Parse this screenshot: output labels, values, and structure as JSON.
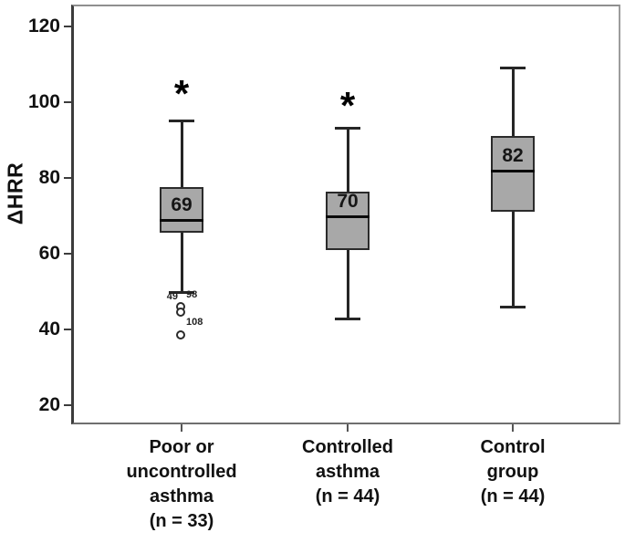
{
  "chart_data": {
    "type": "box",
    "title": "",
    "ylabel": "ΔHRR",
    "xlabel": "",
    "yticks": [
      120,
      100,
      80,
      60,
      40,
      20
    ],
    "ylim": [
      15,
      126
    ],
    "grid": false,
    "frame": true,
    "colors": {
      "box_fill": "#a8a8a8",
      "box_border": "#2b2b2b",
      "median_line": "#0a0a0a",
      "whisker": "#262626",
      "text": "#111111"
    },
    "groups": [
      {
        "label_lines": [
          "Poor or",
          "uncontrolled",
          "asthma",
          "(n = 33)"
        ],
        "n": 33,
        "whisker_high": 95,
        "q3": 77.5,
        "median": 69,
        "q1": 65.5,
        "whisker_low": 50,
        "median_label": "69",
        "significance_marker": "*",
        "significance_y": 103.5,
        "outliers": [
          {
            "value": 46,
            "case_label": "49",
            "label_side": "left",
            "label_at": 48.7
          },
          {
            "value": 44.5,
            "case_label": "98",
            "label_side": "right",
            "label_at": 49.2
          },
          {
            "value": 38.5,
            "case_label": "108",
            "label_side": "right",
            "label_at": 42
          }
        ]
      },
      {
        "label_lines": [
          "Controlled",
          "asthma",
          "(n = 44)"
        ],
        "n": 44,
        "whisker_high": 93,
        "q3": 76.5,
        "median": 70,
        "q1": 61,
        "whisker_low": 43,
        "median_label": "70",
        "significance_marker": "*",
        "significance_y": 100.5,
        "outliers": []
      },
      {
        "label_lines": [
          "Control",
          "group",
          "(n = 44)"
        ],
        "n": 44,
        "whisker_high": 109,
        "q3": 91,
        "median": 82,
        "q1": 71,
        "whisker_low": 46,
        "median_label": "82",
        "significance_marker": "",
        "significance_y": null,
        "outliers": []
      }
    ]
  }
}
